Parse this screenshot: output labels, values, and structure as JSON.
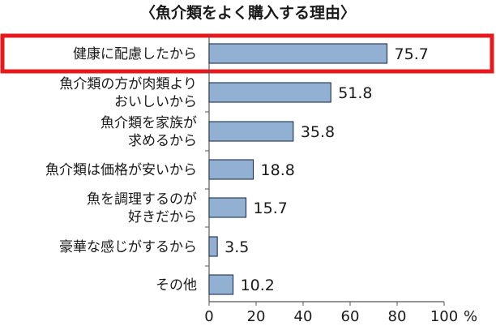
{
  "chart_data": {
    "type": "bar",
    "orientation": "horizontal",
    "title": "〈魚介類をよく購入する理由〉",
    "categories": [
      [
        "健康に配慮したから"
      ],
      [
        "魚介類の方が肉類より",
        "おいしいから"
      ],
      [
        "魚介類を家族が",
        "求めるから"
      ],
      [
        "魚介類は価格が安いから"
      ],
      [
        "魚を調理するのが",
        "好きだから"
      ],
      [
        "豪華な感じがするから"
      ],
      [
        "その他"
      ]
    ],
    "values": [
      75.7,
      51.8,
      35.8,
      18.8,
      15.7,
      3.5,
      10.2
    ],
    "value_labels": [
      "75.7",
      "51.8",
      "35.8",
      "18.8",
      "15.7",
      "3.5",
      "10.2"
    ],
    "xlim": [
      0,
      100
    ],
    "xticks": [
      "0",
      "20",
      "40",
      "60",
      "80",
      "100"
    ],
    "x_unit": "%",
    "highlighted_index": 0,
    "colors": {
      "bar_fill": "#92b1d2",
      "bar_stroke": "#1c3350",
      "highlight_box": "#e8191d",
      "axis": "#555555"
    }
  }
}
